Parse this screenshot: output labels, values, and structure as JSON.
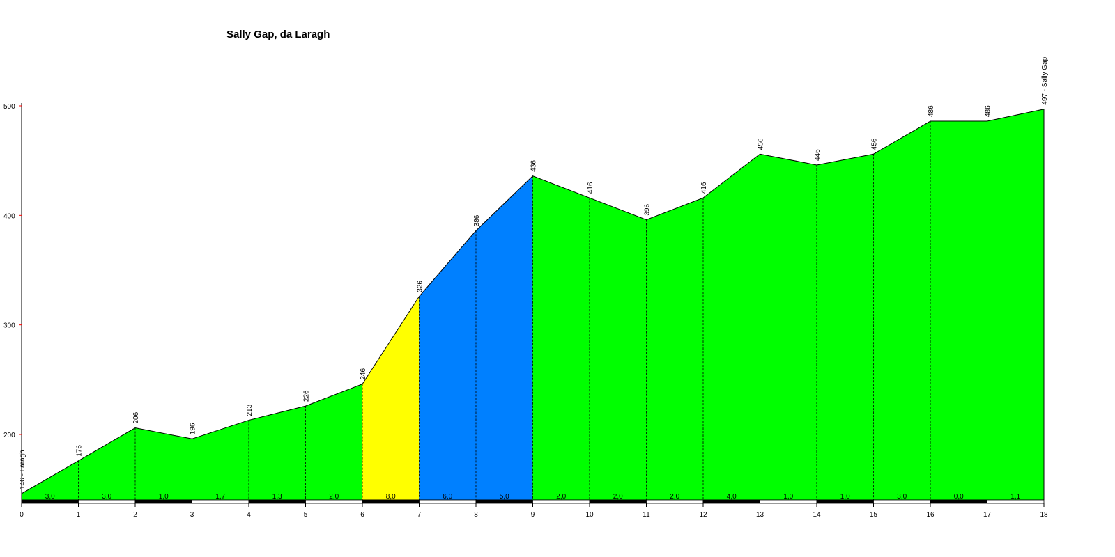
{
  "chart_data": {
    "type": "area",
    "title": "Sally Gap, da Laragh",
    "xlabel": "",
    "ylabel": "",
    "xlim": [
      0,
      18
    ],
    "ylim": [
      140,
      500
    ],
    "x_ticks": [
      "0",
      "1",
      "2",
      "3",
      "4",
      "5",
      "6",
      "7",
      "8",
      "9",
      "10",
      "11",
      "12",
      "13",
      "14",
      "15",
      "16",
      "17",
      "18"
    ],
    "y_ticks": [
      "200",
      "300",
      "400",
      "500"
    ],
    "x": [
      0,
      1,
      2,
      3,
      4,
      5,
      6,
      7,
      8,
      9,
      10,
      11,
      12,
      13,
      14,
      15,
      16,
      17,
      18
    ],
    "elevations": [
      146,
      176,
      206,
      196,
      213,
      226,
      246,
      326,
      386,
      436,
      416,
      396,
      416,
      456,
      446,
      456,
      486,
      486,
      497
    ],
    "point_labels": [
      "146 - Laragh",
      "176",
      "206",
      "196",
      "213",
      "226",
      "246",
      "326",
      "386",
      "436",
      "416",
      "396",
      "416",
      "456",
      "446",
      "456",
      "486",
      "486",
      "497 - Sally Gap"
    ],
    "segment_gradients": [
      "3,0",
      "3,0",
      "1,0",
      "1,7",
      "1,3",
      "2,0",
      "8,0",
      "6,0",
      "5,0",
      "2,0",
      "2,0",
      "2,0",
      "4,0",
      "1,0",
      "1,0",
      "3,0",
      "0,0",
      "1,1"
    ],
    "colors": {
      "green": "#00ff00",
      "yellow": "#ffff00",
      "blue": "#0080ff",
      "outline": "#000000",
      "y_axis_tick": "#ff0000"
    },
    "segment_colors": [
      "green",
      "green",
      "green",
      "green",
      "green",
      "green",
      "yellow",
      "blue",
      "blue",
      "green",
      "green",
      "green",
      "green",
      "green",
      "green",
      "green",
      "green",
      "green"
    ]
  }
}
